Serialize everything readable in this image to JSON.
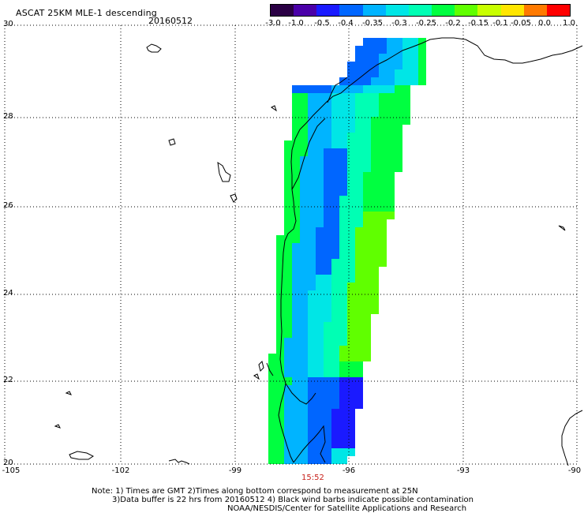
{
  "header": {
    "title": "ASCAT 25KM MLE-1 descending",
    "date": "20160512"
  },
  "colorbar": {
    "labels": [
      "-3.0",
      "-1.0",
      "-0.5",
      "-0.4",
      "-0.35",
      "-0.3",
      "-0.25",
      "-0.2",
      "-0.15",
      "-0.1",
      "-0.05",
      "0.0",
      "1.0"
    ],
    "colors": [
      "#2a0044",
      "#4a00a8",
      "#1a1aff",
      "#0066ff",
      "#00b4ff",
      "#00e6e6",
      "#00ffb4",
      "#00ff40",
      "#60ff00",
      "#c8ff00",
      "#ffe600",
      "#ff7a00",
      "#ff0000"
    ]
  },
  "axes": {
    "lat_labels": [
      "30",
      "28",
      "26",
      "24",
      "22",
      "20"
    ],
    "lon_labels": [
      "-105",
      "-102",
      "-99",
      "-96",
      "-93",
      "-90"
    ]
  },
  "pass_time": "15:52",
  "notes": [
    "Note: 1) Times are GMT 2)Times along bottom correspond to measurement at 25N",
    "3)Data buffer is 22 hrs from 20160512 4) Black wind barbs indicate possible contamination",
    "NOAA/NESDIS/Center for Satellite Applications and Research"
  ],
  "map_colors": {
    "deep": "#1a1aff",
    "blue": "#0066ff",
    "sky": "#00b4ff",
    "cyan": "#00e6e6",
    "aqua": "#00ffb4",
    "green": "#00ff40",
    "lime": "#60ff00"
  }
}
